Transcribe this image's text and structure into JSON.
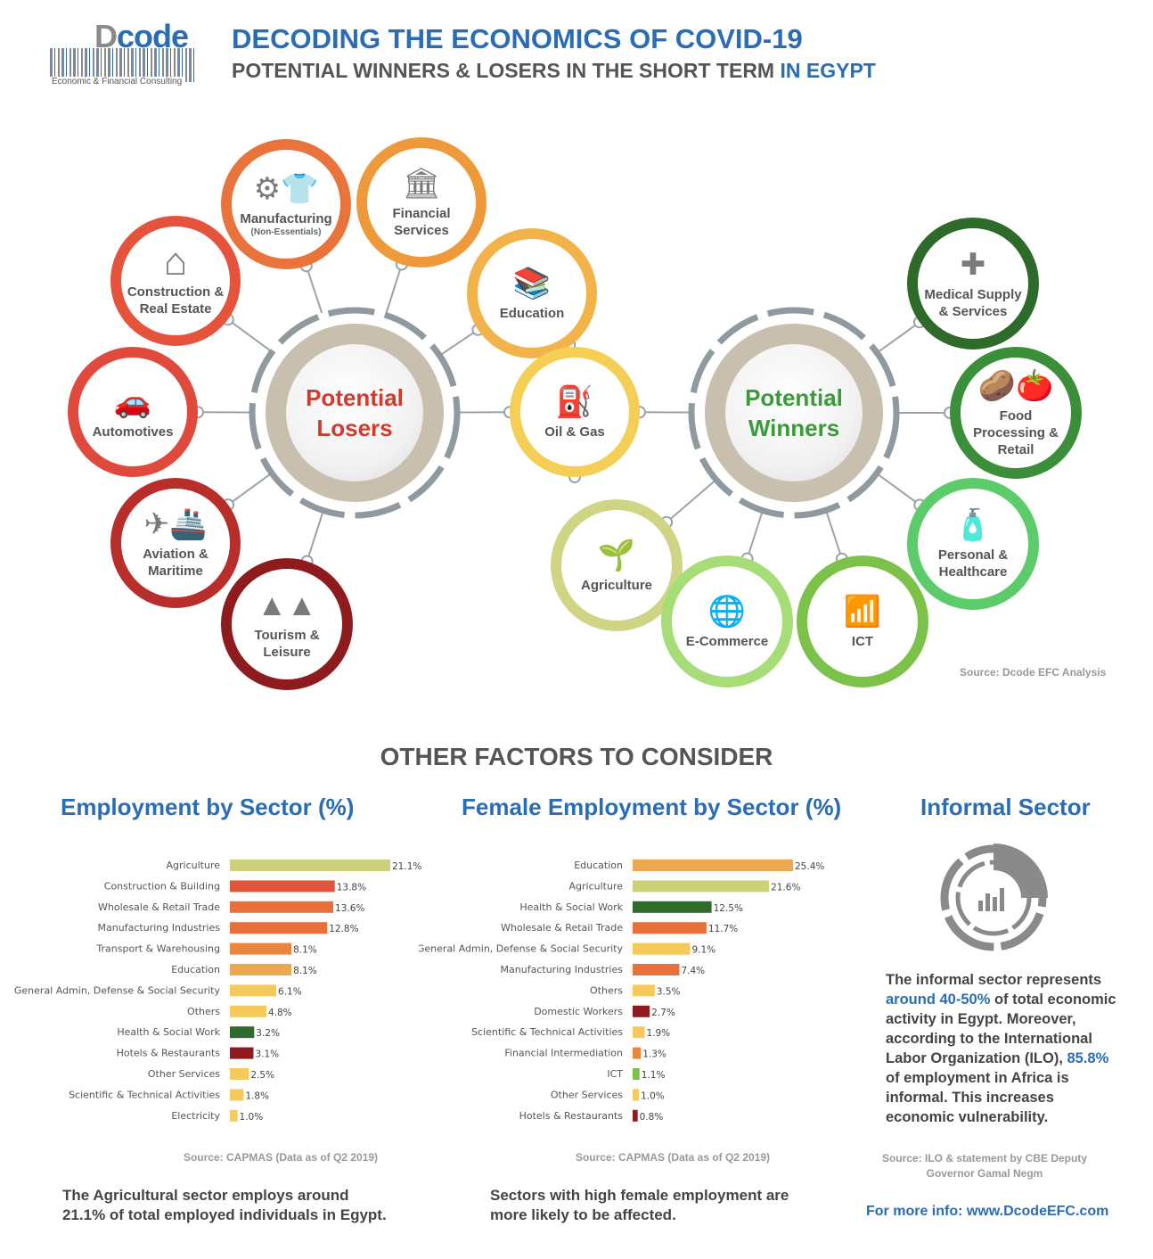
{
  "header": {
    "logo_text_1": "D",
    "logo_text_2": "code",
    "logo_sub": "Economic & Financial Consulting",
    "title": "DECODING THE ECONOMICS OF COVID-19",
    "subtitle_main": "POTENTIAL WINNERS & LOSERS IN THE SHORT TERM ",
    "subtitle_hl": "IN EGYPT"
  },
  "diagram": {
    "losers_hub": "Potential Losers",
    "winners_hub": "Potential Winners",
    "losers": [
      {
        "label": "Manufacturing",
        "sub": "(Non-Essentials)",
        "icon": "gear-shirt-icon",
        "glyph": "⚙👕",
        "color": "#e8743b"
      },
      {
        "label": "Financial Services",
        "sub": "",
        "icon": "bank-icon",
        "glyph": "🏛",
        "color": "#ee9a3a"
      },
      {
        "label": "Construction & Real Estate",
        "sub": "",
        "icon": "house-icon",
        "glyph": "⌂",
        "color": "#e5533d"
      },
      {
        "label": "Education",
        "sub": "",
        "icon": "books-icon",
        "glyph": "📚",
        "color": "#f2b44a"
      },
      {
        "label": "Automotives",
        "sub": "",
        "icon": "car-icon",
        "glyph": "🚗",
        "color": "#e04a3c"
      },
      {
        "label": "Oil & Gas",
        "sub": "",
        "icon": "oil-pump-icon",
        "glyph": "⛽",
        "color": "#f5cf55"
      },
      {
        "label": "Aviation & Maritime",
        "sub": "",
        "icon": "plane-ship-icon",
        "glyph": "✈🚢",
        "color": "#b82e2a"
      },
      {
        "label": "Tourism & Leisure",
        "sub": "",
        "icon": "pyramids-icon",
        "glyph": "▲▲",
        "color": "#8e1c1e"
      }
    ],
    "winners": [
      {
        "label": "Medical Supply & Services",
        "icon": "medical-kit-icon",
        "glyph": "✚",
        "color": "#2e6b2a"
      },
      {
        "label": "Food Processing & Retail",
        "icon": "potato-tomato-icon",
        "glyph": "🥔🍅",
        "color": "#3c8f3a"
      },
      {
        "label": "Personal & Healthcare",
        "icon": "sanitizer-icon",
        "glyph": "🧴",
        "color": "#5ccc6a"
      },
      {
        "label": "Agriculture",
        "icon": "plant-hand-icon",
        "glyph": "🌱",
        "color": "#cfd584"
      },
      {
        "label": "E-Commerce",
        "icon": "globe-click-icon",
        "glyph": "🌐",
        "color": "#a7dd76"
      },
      {
        "label": "ICT",
        "icon": "wifi-icon",
        "glyph": "📶",
        "color": "#7cc24a"
      }
    ],
    "source": "Source: Dcode EFC Analysis"
  },
  "other_title": "OTHER FACTORS TO CONSIDER",
  "chart_data": [
    {
      "type": "bar",
      "orientation": "horizontal",
      "title": "Employment by Sector (%)",
      "categories": [
        "Agriculture",
        "Construction & Building",
        "Wholesale & Retail Trade",
        "Manufacturing Industries",
        "Transport & Warehousing",
        "Education",
        "General Admin, Defense & Social Security",
        "Others",
        "Health & Social Work",
        "Hotels & Restaurants",
        "Other Services",
        "Scientific & Technical Activities",
        "Electricity"
      ],
      "values": [
        21.1,
        13.8,
        13.6,
        12.8,
        8.1,
        8.1,
        6.1,
        4.8,
        3.2,
        3.1,
        2.5,
        1.8,
        1.0
      ],
      "value_labels": [
        "21.1%",
        "13.8%",
        "13.6%",
        "12.8%",
        "8.1%",
        "8.1%",
        "6.1%",
        "4.8%",
        "3.2%",
        "3.1%",
        "2.5%",
        "1.8%",
        "1.0%"
      ],
      "colors": [
        "#cdd17a",
        "#e0553c",
        "#e8713b",
        "#e8713b",
        "#ea8640",
        "#eea84f",
        "#f5c95c",
        "#f5c95c",
        "#2f6b2a",
        "#8e1c1e",
        "#f5c95c",
        "#f5c95c",
        "#f5c95c"
      ],
      "xlim": [
        0,
        21.1
      ],
      "source": "Source: CAPMAS (Data as of Q2 2019)",
      "note": "The Agricultural sector employs around 21.1% of total employed individuals in Egypt."
    },
    {
      "type": "bar",
      "orientation": "horizontal",
      "title": "Female Employment by Sector (%)",
      "categories": [
        "Education",
        "Agriculture",
        "Health & Social Work",
        "Wholesale & Retail Trade",
        "General Admin, Defense & Social Security",
        "Manufacturing Industries",
        "Others",
        "Domestic Workers",
        "Scientific & Technical Activities",
        "Financial Intermediation",
        "ICT",
        "Other Services",
        "Hotels & Restaurants"
      ],
      "values": [
        25.4,
        21.6,
        12.5,
        11.7,
        9.1,
        7.4,
        3.5,
        2.7,
        1.9,
        1.3,
        1.1,
        1.0,
        0.8
      ],
      "value_labels": [
        "25.4%",
        "21.6%",
        "12.5%",
        "11.7%",
        "9.1%",
        "7.4%",
        "3.5%",
        "2.7%",
        "1.9%",
        "1.3%",
        "1.1%",
        "1.0%",
        "0.8%"
      ],
      "colors": [
        "#eea84f",
        "#cdd17a",
        "#2f6b2a",
        "#e8713b",
        "#f5c95c",
        "#e8713b",
        "#f5c95c",
        "#8e1c1e",
        "#f5c95c",
        "#ea8640",
        "#7cc24a",
        "#f5c95c",
        "#8e1c1e"
      ],
      "xlim": [
        0,
        25.4
      ],
      "source": "Source: CAPMAS (Data as of Q2 2019)",
      "note": "Sectors with high female employment are more likely to be affected."
    }
  ],
  "informal": {
    "title": "Informal Sector",
    "icon": "pie-bar-chart-icon",
    "text_1": "The informal sector represents ",
    "text_hl_1": "around 40-50%",
    "text_2": " of total economic activity in Egypt. Moreover, according to the International Labor Organization (ILO), ",
    "text_hl_2": "85.8%",
    "text_3": " of employment in Africa is informal. This increases economic vulnerability.",
    "source": "Source: ILO & statement by CBE Deputy Governor Gamal Negm",
    "more_info": "For more info: www.DcodeEFC.com"
  }
}
